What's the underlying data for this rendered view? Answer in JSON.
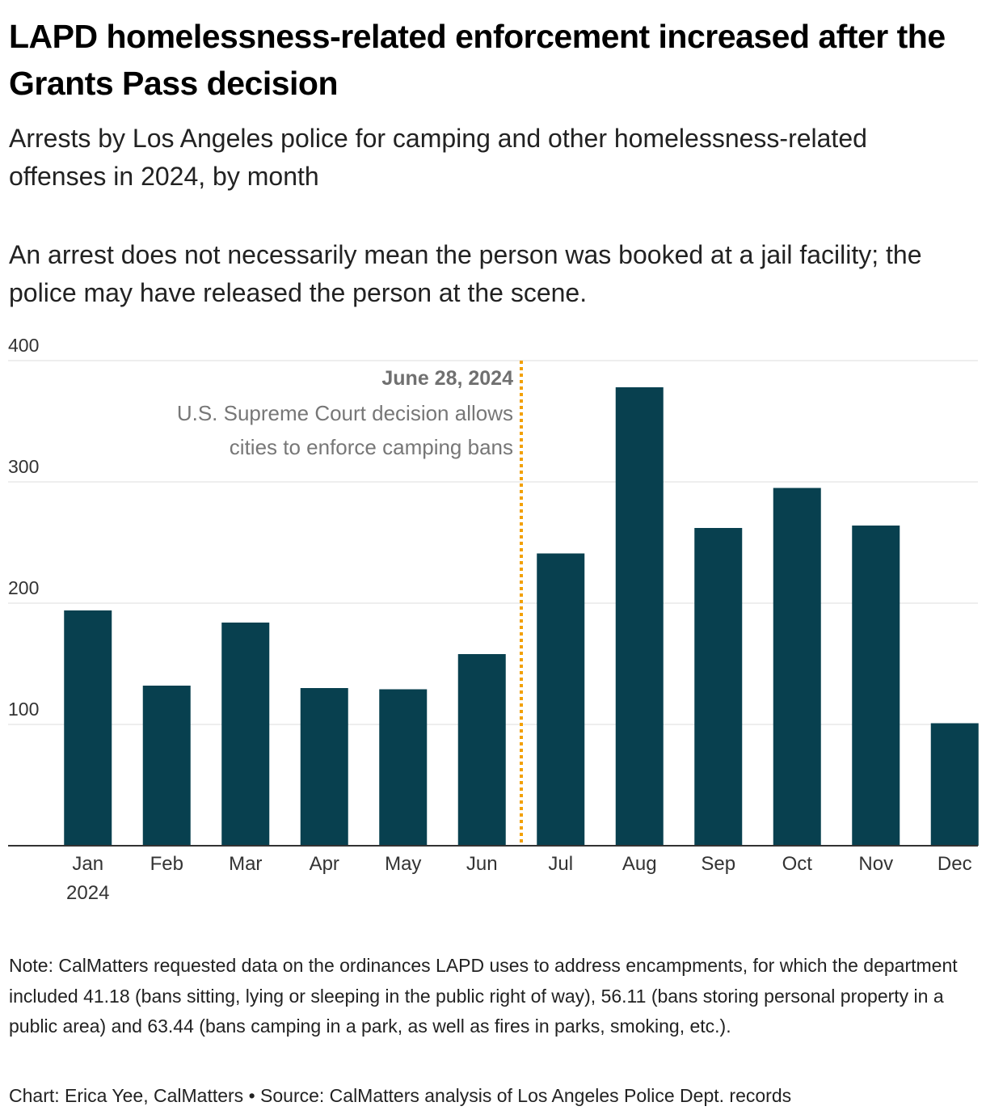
{
  "header": {
    "title": "LAPD homelessness-related enforcement increased after the Grants Pass decision",
    "subtitle": "Arrests by Los Angeles police for camping and other homelessness-related offenses in 2024, by month",
    "description": "An arrest does not necessarily mean the person was booked at a jail facility; the police may have released the person at the scene."
  },
  "chart_data": {
    "type": "bar",
    "categories": [
      "Jan",
      "Feb",
      "Mar",
      "Apr",
      "May",
      "Jun",
      "Jul",
      "Aug",
      "Sep",
      "Oct",
      "Nov",
      "Dec"
    ],
    "first_category_sublabel": "2024",
    "values": [
      194,
      132,
      184,
      130,
      129,
      158,
      241,
      378,
      262,
      295,
      264,
      101
    ],
    "yticks": [
      100,
      200,
      300,
      400
    ],
    "ylim": [
      0,
      400
    ],
    "grid": true,
    "bar_color": "#08404f",
    "annotation": {
      "position_between": [
        "Jun",
        "Jul"
      ],
      "date": "June 28, 2024",
      "text_lines": [
        "U.S. Supreme Court decision allows",
        "cities to enforce camping bans"
      ],
      "line_color": "#f2a000",
      "text_color": "#707070"
    }
  },
  "footer": {
    "note": "Note: CalMatters requested data on the ordinances LAPD uses to address encampments, for which the department included 41.18 (bans sitting, lying or sleeping in the public right of way), 56.11 (bans storing personal property in a public area) and 63.44 (bans camping in a park, as well as fires in parks, smoking, etc.).",
    "credit": "Chart: Erica Yee, CalMatters • Source: CalMatters analysis of Los Angeles Police Dept. records"
  }
}
